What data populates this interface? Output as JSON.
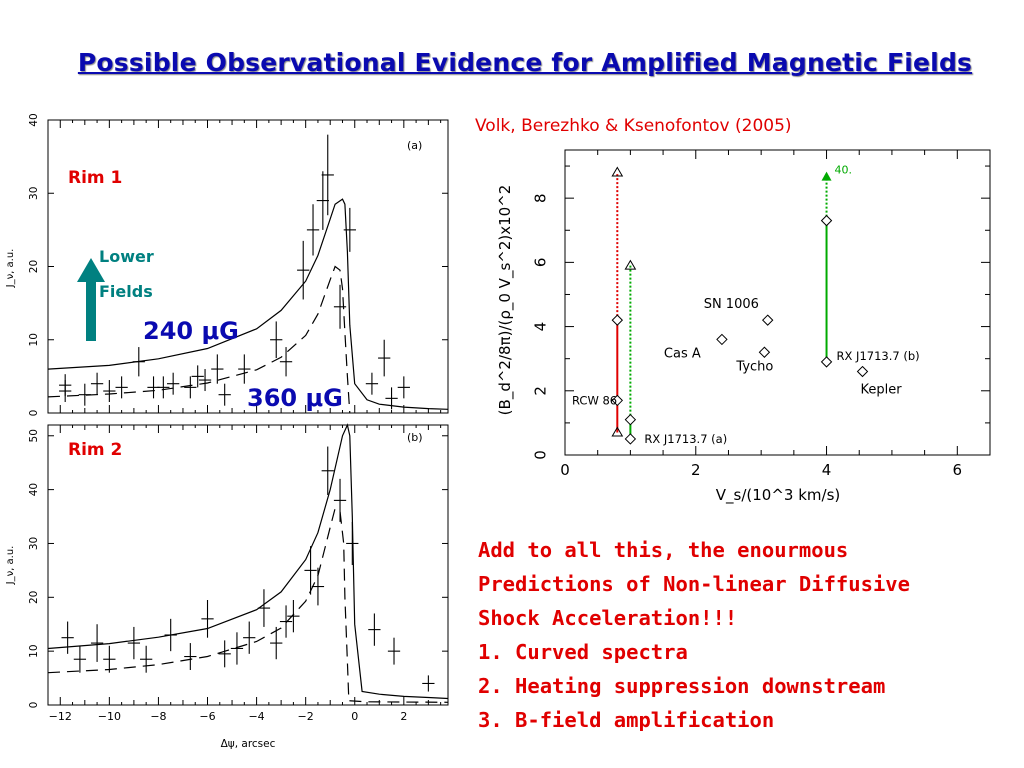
{
  "title": "Possible Observational Evidence for Amplified Magnetic Fields",
  "citation": "Volk, Berezhko & Ksenofontov (2005)",
  "text_block": {
    "intro": [
      "Add to all this, the enourmous",
      "Predictions of Non-linear Diffusive",
      "Shock Acceleration!!!"
    ],
    "items": [
      "1. Curved spectra",
      "2. Heating suppression downstream",
      "3. B-field amplification"
    ]
  },
  "annotations": {
    "rim1": "Rim 1",
    "rim2": "Rim 2",
    "arrow_label_1": "Lower",
    "arrow_label_2": "Fields",
    "field_240": "240  μG",
    "field_360": "360 μG",
    "arrow_color": "#008080",
    "label_red": "#e00000",
    "label_blue": "#0a0ab0"
  },
  "chart_data": [
    {
      "type": "line",
      "panel_label": "(a)",
      "ylabel": "J_ν, a.u.",
      "xlim": [
        -12.5,
        3.8
      ],
      "ylim": [
        0,
        40
      ],
      "yticks": [
        0,
        10,
        20,
        30,
        40
      ],
      "series": [
        {
          "style": "solid",
          "x": [
            -12.5,
            -10,
            -8,
            -6,
            -4,
            -3,
            -2,
            -1.5,
            -1,
            -0.8,
            -0.5,
            -0.4,
            -0.3,
            -0.2,
            0,
            0.5,
            1,
            2,
            3,
            3.8
          ],
          "y": [
            6,
            6.5,
            7.4,
            8.8,
            11.5,
            14,
            18,
            21.5,
            26.5,
            28.5,
            29.2,
            28.5,
            22,
            12,
            4,
            1.8,
            1.2,
            0.8,
            0.6,
            0.5
          ]
        },
        {
          "style": "dashed",
          "x": [
            -12.5,
            -10,
            -8,
            -6,
            -4,
            -3,
            -2,
            -1.5,
            -1,
            -0.8,
            -0.6,
            -0.5,
            -0.4,
            -0.3,
            -0.2
          ],
          "y": [
            2.2,
            2.6,
            3.1,
            4.1,
            5.9,
            7.6,
            10.6,
            13.5,
            18.2,
            20,
            19.5,
            17,
            11,
            5,
            0
          ]
        }
      ],
      "points": [
        {
          "x": -11.8,
          "y": 3.8,
          "dx": 0.25,
          "dy": 1.5
        },
        {
          "x": -11.8,
          "y": 3,
          "dx": 0.25,
          "dy": 1.5
        },
        {
          "x": -11,
          "y": 2.5,
          "dx": 0.25,
          "dy": 1.5
        },
        {
          "x": -10.5,
          "y": 4,
          "dx": 0.25,
          "dy": 1.5
        },
        {
          "x": -10,
          "y": 3,
          "dx": 0.25,
          "dy": 1.5
        },
        {
          "x": -9.5,
          "y": 3.5,
          "dx": 0.25,
          "dy": 1.5
        },
        {
          "x": -8.8,
          "y": 7,
          "dx": 0.25,
          "dy": 2
        },
        {
          "x": -8.2,
          "y": 3.5,
          "dx": 0.25,
          "dy": 1.5
        },
        {
          "x": -7.8,
          "y": 3.5,
          "dx": 0.25,
          "dy": 1.5
        },
        {
          "x": -7.4,
          "y": 4,
          "dx": 0.25,
          "dy": 1.5
        },
        {
          "x": -6.7,
          "y": 3.5,
          "dx": 0.25,
          "dy": 1.5
        },
        {
          "x": -6.4,
          "y": 5,
          "dx": 0.25,
          "dy": 1.5
        },
        {
          "x": -6.1,
          "y": 4.5,
          "dx": 0.25,
          "dy": 1.5
        },
        {
          "x": -5.6,
          "y": 6,
          "dx": 0.25,
          "dy": 2
        },
        {
          "x": -5.3,
          "y": 2.5,
          "dx": 0.25,
          "dy": 1.5
        },
        {
          "x": -4.5,
          "y": 6,
          "dx": 0.25,
          "dy": 2
        },
        {
          "x": -3.2,
          "y": 10,
          "dx": 0.25,
          "dy": 2.5
        },
        {
          "x": -2.8,
          "y": 7,
          "dx": 0.25,
          "dy": 2
        },
        {
          "x": -2.1,
          "y": 19.5,
          "dx": 0.25,
          "dy": 4
        },
        {
          "x": -1.7,
          "y": 25,
          "dx": 0.25,
          "dy": 3.5
        },
        {
          "x": -1.3,
          "y": 29,
          "dx": 0.25,
          "dy": 4
        },
        {
          "x": -1.1,
          "y": 32.5,
          "dx": 0.25,
          "dy": 5.5
        },
        {
          "x": -0.6,
          "y": 14.5,
          "dx": 0.25,
          "dy": 3
        },
        {
          "x": -0.2,
          "y": 25,
          "dx": 0.25,
          "dy": 3
        },
        {
          "x": 0.7,
          "y": 4,
          "dx": 0.25,
          "dy": 1.5
        },
        {
          "x": 1.2,
          "y": 7.5,
          "dx": 0.25,
          "dy": 2.5
        },
        {
          "x": 1.5,
          "y": 2,
          "dx": 0.25,
          "dy": 1.5
        },
        {
          "x": 2,
          "y": 3.5,
          "dx": 0.25,
          "dy": 1.5
        }
      ]
    },
    {
      "type": "line",
      "panel_label": "(b)",
      "ylabel": "J_ν, a.u.",
      "xlabel": "Δψ, arcsec",
      "xlim": [
        -12.5,
        3.8
      ],
      "ylim": [
        0,
        52
      ],
      "xticks": [
        -12,
        -10,
        -8,
        -6,
        -4,
        -2,
        0,
        2
      ],
      "yticks": [
        0,
        10,
        20,
        30,
        40,
        50
      ],
      "series": [
        {
          "style": "solid",
          "x": [
            -12.5,
            -10,
            -8,
            -6,
            -4,
            -3,
            -2,
            -1.5,
            -1,
            -0.7,
            -0.5,
            -0.3,
            -0.2,
            -0.1,
            0,
            0.3,
            1,
            2,
            3,
            3.8
          ],
          "y": [
            10.5,
            11.4,
            12.6,
            14.2,
            17.7,
            21,
            27,
            32,
            40,
            46,
            50,
            52,
            50,
            35,
            15,
            2.5,
            2,
            1.6,
            1.4,
            1.2
          ]
        },
        {
          "style": "dashed",
          "x": [
            -12.5,
            -10,
            -8,
            -6,
            -4,
            -3,
            -2,
            -1.5,
            -1,
            -0.8,
            -0.6,
            -0.45,
            -0.4,
            -0.3,
            -0.25,
            -0.25,
            0.5,
            3.8
          ],
          "y": [
            6,
            6.6,
            7.5,
            9,
            11.8,
            14.3,
            19.3,
            24,
            33,
            36.5,
            36,
            30,
            20,
            8,
            2,
            0.8,
            0.6,
            0.5
          ]
        }
      ],
      "points": [
        {
          "x": -11.7,
          "y": 12.5,
          "dx": 0.25,
          "dy": 3
        },
        {
          "x": -11.2,
          "y": 8.5,
          "dx": 0.25,
          "dy": 2.5
        },
        {
          "x": -10.5,
          "y": 11.5,
          "dx": 0.25,
          "dy": 3.5
        },
        {
          "x": -10,
          "y": 8.5,
          "dx": 0.25,
          "dy": 2.5
        },
        {
          "x": -9,
          "y": 11.5,
          "dx": 0.25,
          "dy": 3
        },
        {
          "x": -8.5,
          "y": 8.5,
          "dx": 0.25,
          "dy": 2.5
        },
        {
          "x": -7.5,
          "y": 13,
          "dx": 0.25,
          "dy": 3
        },
        {
          "x": -6.7,
          "y": 9,
          "dx": 0.25,
          "dy": 2.5
        },
        {
          "x": -6,
          "y": 16,
          "dx": 0.25,
          "dy": 3.5
        },
        {
          "x": -5.3,
          "y": 9.5,
          "dx": 0.25,
          "dy": 2.5
        },
        {
          "x": -4.8,
          "y": 10.5,
          "dx": 0.25,
          "dy": 3
        },
        {
          "x": -4.3,
          "y": 12.5,
          "dx": 0.25,
          "dy": 3
        },
        {
          "x": -3.7,
          "y": 18,
          "dx": 0.25,
          "dy": 3.5
        },
        {
          "x": -3.2,
          "y": 11.5,
          "dx": 0.25,
          "dy": 3
        },
        {
          "x": -2.8,
          "y": 15.5,
          "dx": 0.25,
          "dy": 3
        },
        {
          "x": -2.5,
          "y": 16.5,
          "dx": 0.25,
          "dy": 3
        },
        {
          "x": -1.8,
          "y": 25,
          "dx": 0.25,
          "dy": 4.5
        },
        {
          "x": -1.5,
          "y": 22,
          "dx": 0.25,
          "dy": 3.5
        },
        {
          "x": -1.1,
          "y": 43.5,
          "dx": 0.25,
          "dy": 4.5
        },
        {
          "x": -0.6,
          "y": 38,
          "dx": 0.25,
          "dy": 4
        },
        {
          "x": -0.1,
          "y": 30,
          "dx": 0.25,
          "dy": 4
        },
        {
          "x": 0.8,
          "y": 14,
          "dx": 0.25,
          "dy": 3
        },
        {
          "x": 1.6,
          "y": 10,
          "dx": 0.25,
          "dy": 2.5
        },
        {
          "x": 3,
          "y": 4,
          "dx": 0.25,
          "dy": 1.5
        }
      ]
    },
    {
      "type": "scatter",
      "title": "",
      "xlabel": "V_s/(10^3 km/s)",
      "ylabel": "(B_d^2/8π)/(ρ_0 V_s^2)x10^2",
      "xlim": [
        0,
        6.5
      ],
      "ylim": [
        0,
        9.5
      ],
      "xticks": [
        0,
        2,
        4,
        6
      ],
      "yticks": [
        0,
        2,
        4,
        6,
        8
      ],
      "bars": [
        {
          "name": "RCW 86",
          "x": 0.8,
          "y_low": 0.7,
          "y_mid": 4.2,
          "y_high": 8.8,
          "low_marker_y": 1.7,
          "color": "#e00000"
        },
        {
          "name": "RX J1713.7 (a)",
          "x": 1.0,
          "y_low": 0.5,
          "y_mid": 1.1,
          "y_high": 5.9,
          "low_marker_y": 1.8,
          "color": "#00aa00"
        },
        {
          "name": "RX J1713.7 (b)",
          "x": 4.0,
          "y_low": 2.9,
          "y_mid": 7.3,
          "y_high": 8.7,
          "high_label": "40.",
          "color": "#00aa00"
        }
      ],
      "points": [
        {
          "name": "SN 1006",
          "x": 3.1,
          "y": 4.2
        },
        {
          "name": "Cas A",
          "x": 2.4,
          "y": 3.6
        },
        {
          "name": "Tycho",
          "x": 3.05,
          "y": 3.2
        },
        {
          "name": "Kepler",
          "x": 4.55,
          "y": 2.6
        }
      ]
    }
  ]
}
